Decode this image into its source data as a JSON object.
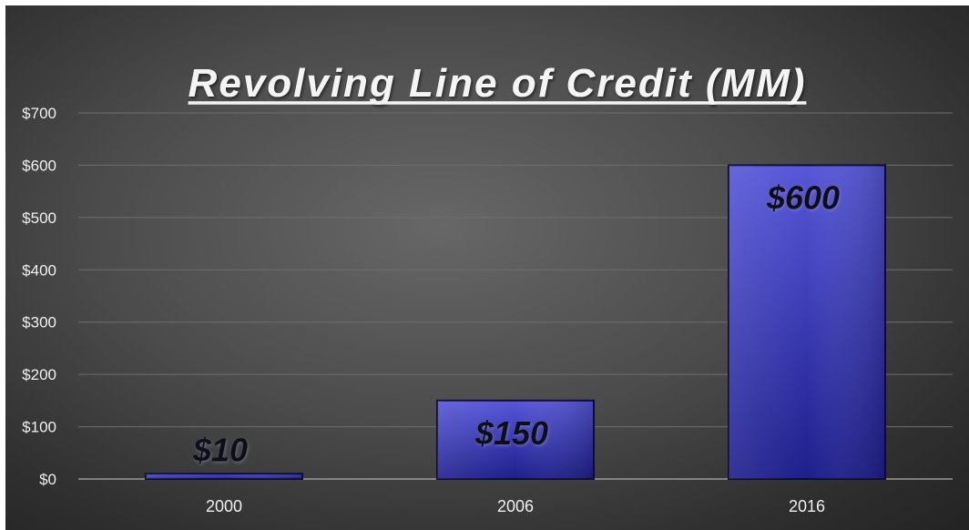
{
  "chart_data": {
    "type": "bar",
    "title": "Revolving Line of Credit (MM)",
    "categories": [
      "2000",
      "2006",
      "2016"
    ],
    "values": [
      10,
      150,
      600
    ],
    "data_labels": [
      "$10",
      "$150",
      "$600"
    ],
    "y_ticks": [
      "$0",
      "$100",
      "$200",
      "$300",
      "$400",
      "$500",
      "$600",
      "$700"
    ],
    "ylim": [
      0,
      700
    ],
    "grid": true,
    "legend": "none",
    "colors": {
      "bar_top": "#5656d8",
      "bar_bottom": "#1e1e8c",
      "bar_edge": "#0c0c3c",
      "background": "#4a4a4a",
      "title_text": "#f4f4f4",
      "data_label_text": "#0f0f1e",
      "axis_text": "#f0f0f0",
      "grid": "#6e6e6e"
    }
  }
}
